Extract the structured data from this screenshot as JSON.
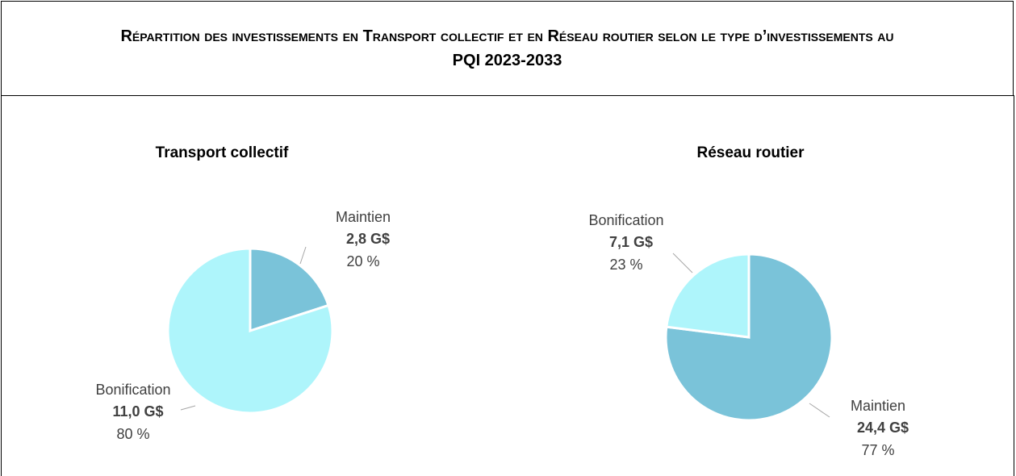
{
  "title": "Répartition des investissements en Transport collectif et en Réseau routier selon le type d’investissements au PQI 2023-2033",
  "chart_data": [
    {
      "type": "pie",
      "title": "Transport collectif",
      "categories": [
        "Maintien",
        "Bonification"
      ],
      "values": [
        20,
        80
      ],
      "value_labels": [
        "20 %",
        "80 %"
      ],
      "amounts": [
        2.8,
        11.0
      ],
      "amount_labels": [
        "2,8 G$",
        "11,0 G$"
      ],
      "colors": [
        "#7ac3d9",
        "#aef5fb"
      ]
    },
    {
      "type": "pie",
      "title": "Réseau routier",
      "categories": [
        "Maintien",
        "Bonification"
      ],
      "values": [
        77,
        23
      ],
      "value_labels": [
        "77 %",
        "23 %"
      ],
      "amounts": [
        24.4,
        7.1
      ],
      "amount_labels": [
        "24,4 G$",
        "7,1 G$"
      ],
      "colors": [
        "#7ac3d9",
        "#aef5fb"
      ]
    }
  ]
}
